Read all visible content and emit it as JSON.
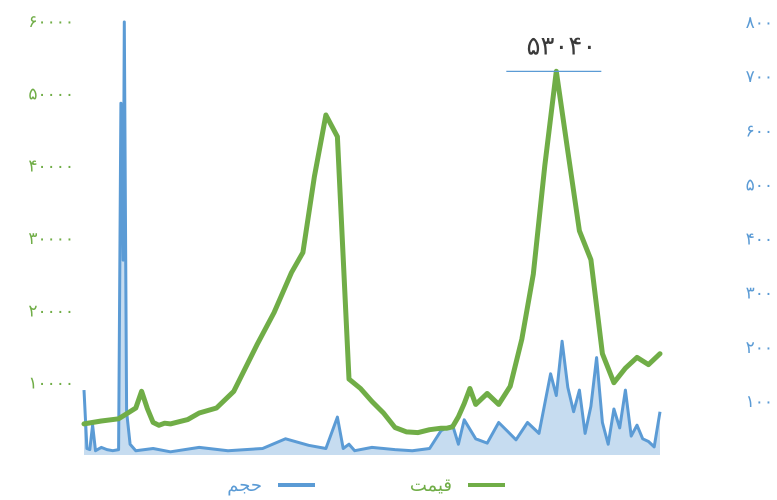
{
  "chart_data": {
    "type": "line",
    "title": "",
    "xlabel": "",
    "grid": false,
    "legend_position": "bottom",
    "colors": {
      "price": "#70ad47",
      "volume": "#5b9bd5",
      "annotation_text": "#3a3a3a",
      "peak_line": "#5b9bd5"
    },
    "left_axis": {
      "ylim": [
        0,
        60000
      ],
      "ticks": [
        {
          "value": 60000,
          "label": "۶۰۰۰۰"
        },
        {
          "value": 50000,
          "label": "۵۰۰۰۰"
        },
        {
          "value": 40000,
          "label": "۴۰۰۰۰"
        },
        {
          "value": 30000,
          "label": "۳۰۰۰۰"
        },
        {
          "value": 20000,
          "label": "۲۰۰۰۰"
        },
        {
          "value": 10000,
          "label": "۱۰۰۰۰"
        }
      ]
    },
    "right_axis": {
      "ylim": [
        0,
        800
      ],
      "ticks": [
        {
          "value": 800,
          "label": "۸۰۰"
        },
        {
          "value": 700,
          "label": "۷۰۰"
        },
        {
          "value": 600,
          "label": "۶۰۰"
        },
        {
          "value": 500,
          "label": "۵۰۰"
        },
        {
          "value": 400,
          "label": "۴۰۰"
        },
        {
          "value": 300,
          "label": "۳۰۰"
        },
        {
          "value": 200,
          "label": "۲۰۰"
        },
        {
          "value": 100,
          "label": "۱۰۰"
        }
      ]
    },
    "series": [
      {
        "name": "قیمت",
        "axis": "left",
        "color": "#70ad47",
        "x": [
          0,
          3,
          6,
          9,
          10,
          11,
          12,
          13,
          14,
          15,
          16,
          18,
          20,
          23,
          26,
          30,
          33,
          36,
          38,
          40,
          42,
          44,
          46,
          48,
          50,
          52,
          54,
          56,
          58,
          60,
          62,
          63,
          64,
          65,
          66,
          67,
          68,
          70,
          72,
          74,
          76,
          78,
          80,
          82,
          84,
          86,
          88,
          90,
          92,
          94,
          96,
          98,
          100
        ],
        "values": [
          4300,
          4700,
          5000,
          6500,
          8800,
          6400,
          4500,
          4100,
          4400,
          4300,
          4500,
          4900,
          5800,
          6500,
          8800,
          15200,
          19700,
          25200,
          28000,
          38500,
          47000,
          44000,
          10500,
          9200,
          7400,
          5800,
          3800,
          3200,
          3100,
          3500,
          3700,
          3700,
          3900,
          5300,
          7100,
          9200,
          7000,
          8500,
          7000,
          9500,
          16000,
          25000,
          40000,
          53040,
          42000,
          31000,
          27000,
          14000,
          10000,
          12000,
          13500,
          12500,
          14000
        ]
      },
      {
        "name": "حجم",
        "axis": "right",
        "color": "#5b9bd5",
        "x": [
          0,
          0.5,
          1,
          1.5,
          2,
          3,
          4,
          5,
          6,
          6.4,
          6.8,
          7,
          7.4,
          8,
          9,
          12,
          15,
          20,
          25,
          28,
          31,
          35,
          39,
          42,
          44,
          45,
          46,
          47,
          50,
          54,
          57,
          60,
          62,
          64,
          65,
          66,
          68,
          70,
          72,
          75,
          77,
          79,
          81,
          82,
          83,
          84,
          85,
          86,
          87,
          88,
          89,
          90,
          91,
          92,
          93,
          94,
          95,
          96,
          97,
          98,
          99,
          100
        ],
        "values": [
          120,
          12,
          10,
          55,
          8,
          14,
          10,
          8,
          10,
          650,
          360,
          800,
          80,
          20,
          8,
          12,
          6,
          14,
          8,
          10,
          12,
          30,
          18,
          12,
          70,
          12,
          20,
          8,
          14,
          10,
          8,
          12,
          45,
          55,
          20,
          65,
          30,
          22,
          60,
          28,
          60,
          40,
          150,
          110,
          210,
          125,
          80,
          120,
          40,
          90,
          180,
          60,
          20,
          85,
          50,
          120,
          35,
          55,
          30,
          25,
          15,
          80
        ]
      }
    ],
    "annotations": [
      {
        "text": "۵۳۰۴۰"
      }
    ]
  }
}
